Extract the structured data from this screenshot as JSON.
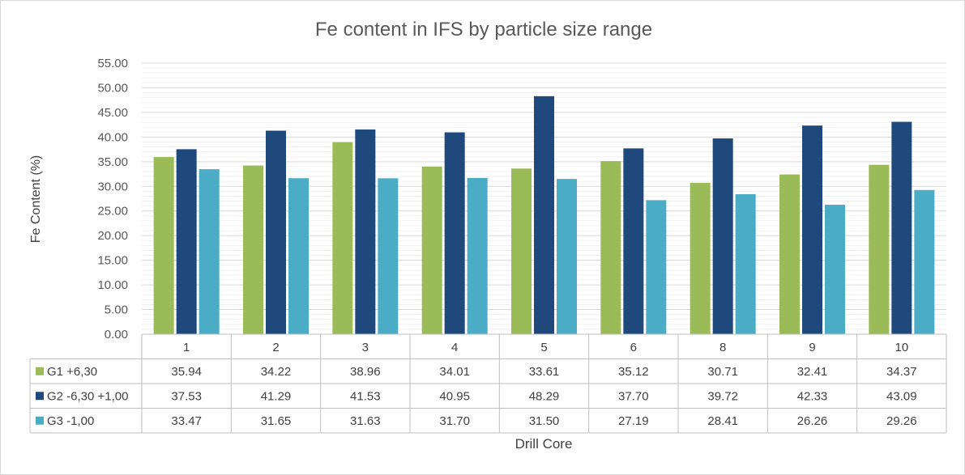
{
  "chart_data": {
    "type": "bar",
    "title": "Fe content in IFS by particle size range",
    "xlabel": "Drill Core",
    "ylabel": "Fe Content (%)",
    "ylim": [
      0,
      55
    ],
    "y_major_step": 5,
    "y_minor_step": 1,
    "grid": true,
    "legend": "data-table-left",
    "categories": [
      "1",
      "2",
      "3",
      "4",
      "5",
      "6",
      "8",
      "9",
      "10"
    ],
    "y_ticks": [
      "0.00",
      "5.00",
      "10.00",
      "15.00",
      "20.00",
      "25.00",
      "30.00",
      "35.00",
      "40.00",
      "45.00",
      "50.00",
      "55.00"
    ],
    "series": [
      {
        "name": "G1 +6,30",
        "color": "#9BBB59",
        "values": [
          35.94,
          34.22,
          38.96,
          34.01,
          33.61,
          35.12,
          30.71,
          32.41,
          34.37
        ],
        "labels": [
          "35.94",
          "34.22",
          "38.96",
          "34.01",
          "33.61",
          "35.12",
          "30.71",
          "32.41",
          "34.37"
        ]
      },
      {
        "name": "G2 -6,30 +1,00",
        "color": "#1F497D",
        "values": [
          37.53,
          41.29,
          41.53,
          40.95,
          48.29,
          37.7,
          39.72,
          42.33,
          43.09
        ],
        "labels": [
          "37.53",
          "41.29",
          "41.53",
          "40.95",
          "48.29",
          "37.70",
          "39.72",
          "42.33",
          "43.09"
        ]
      },
      {
        "name": "G3 -1,00",
        "color": "#4BACC6",
        "values": [
          33.47,
          31.65,
          31.63,
          31.7,
          31.5,
          27.19,
          28.41,
          26.26,
          29.26
        ],
        "labels": [
          "33.47",
          "31.65",
          "31.63",
          "31.70",
          "31.50",
          "27.19",
          "28.41",
          "26.26",
          "29.26"
        ]
      }
    ]
  }
}
